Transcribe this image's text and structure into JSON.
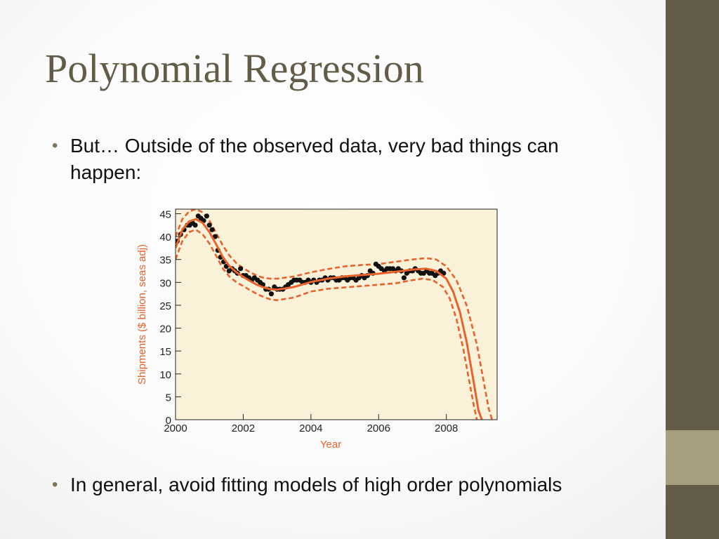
{
  "slide": {
    "title": "Polynomial Regression",
    "bullets": [
      "But… Outside of the observed data, very bad things can happen:",
      "In general, avoid fitting models of high order polynomials"
    ]
  },
  "colors": {
    "accent_bar": "#635c48",
    "accent_bar_light": "#a6a07e",
    "plot_background": "#f9f2d9",
    "fit_line": "#e8622c",
    "points": "#111111",
    "axis_text_orange": "#e8622c"
  },
  "chart_data": {
    "type": "scatter",
    "xlabel": "Year",
    "ylabel": "Shipments ($ billion, seas adj)",
    "xlim": [
      2000,
      2009.5
    ],
    "ylim": [
      0,
      46
    ],
    "xticks": [
      2000,
      2002,
      2004,
      2006,
      2008
    ],
    "yticks": [
      0,
      5,
      10,
      15,
      20,
      25,
      30,
      35,
      40,
      45
    ],
    "grid": false,
    "series": [
      {
        "kind": "points",
        "x": [
          2000.05,
          2000.15,
          2000.25,
          2000.35,
          2000.42,
          2000.5,
          2000.58,
          2000.67,
          2000.75,
          2000.83,
          2000.92,
          2001.0,
          2001.08,
          2001.17,
          2001.25,
          2001.33,
          2001.42,
          2001.5,
          2001.58,
          2001.67,
          2001.75,
          2001.83,
          2001.92,
          2002.0,
          2002.08,
          2002.17,
          2002.25,
          2002.33,
          2002.42,
          2002.5,
          2002.58,
          2002.67,
          2002.75,
          2002.83,
          2002.92,
          2003.0,
          2003.08,
          2003.17,
          2003.25,
          2003.33,
          2003.42,
          2003.5,
          2003.58,
          2003.67,
          2003.75,
          2003.83,
          2003.92,
          2004.0,
          2004.08,
          2004.17,
          2004.25,
          2004.33,
          2004.42,
          2004.5,
          2004.58,
          2004.67,
          2004.75,
          2004.83,
          2004.92,
          2005.0,
          2005.08,
          2005.17,
          2005.25,
          2005.33,
          2005.42,
          2005.5,
          2005.58,
          2005.67,
          2005.75,
          2005.83,
          2005.92,
          2006.0,
          2006.08,
          2006.17,
          2006.25,
          2006.33,
          2006.42,
          2006.5,
          2006.58,
          2006.67,
          2006.75,
          2006.83,
          2006.92,
          2007.0,
          2007.08,
          2007.17,
          2007.25,
          2007.33,
          2007.42,
          2007.5,
          2007.58,
          2007.67,
          2007.75,
          2007.83,
          2007.92
        ],
        "y": [
          39.0,
          40.5,
          41.5,
          42.5,
          42.5,
          43.0,
          42.5,
          44.5,
          44.0,
          43.5,
          44.5,
          42.5,
          41.5,
          40.0,
          37.0,
          35.5,
          34.5,
          33.5,
          32.5,
          33.0,
          32.5,
          32.0,
          33.0,
          31.5,
          31.5,
          31.0,
          30.5,
          31.0,
          30.5,
          30.0,
          29.5,
          28.5,
          28.5,
          27.5,
          29.0,
          28.5,
          28.5,
          28.5,
          29.0,
          29.5,
          30.0,
          30.5,
          30.5,
          30.5,
          30.0,
          30.0,
          30.5,
          30.0,
          30.5,
          30.0,
          30.5,
          30.5,
          31.0,
          30.5,
          31.0,
          31.0,
          30.5,
          30.5,
          31.0,
          31.0,
          30.5,
          31.0,
          31.0,
          30.5,
          31.0,
          31.5,
          31.0,
          31.5,
          32.5,
          32.0,
          34.0,
          33.5,
          33.0,
          32.5,
          33.0,
          33.0,
          33.0,
          32.5,
          33.0,
          32.5,
          31.0,
          32.0,
          32.5,
          32.5,
          33.0,
          32.5,
          32.0,
          32.0,
          32.5,
          32.0,
          32.0,
          31.5,
          32.0,
          32.5,
          32.0
        ]
      },
      {
        "kind": "fit",
        "x": [
          2000.0,
          2000.2,
          2000.4,
          2000.6,
          2000.8,
          2001.0,
          2001.2,
          2001.4,
          2001.6,
          2001.8,
          2002.0,
          2002.2,
          2002.4,
          2002.6,
          2002.8,
          2003.0,
          2003.5,
          2004.0,
          2004.5,
          2005.0,
          2005.5,
          2006.0,
          2006.5,
          2007.0,
          2007.4,
          2007.7,
          2008.0,
          2008.2,
          2008.4,
          2008.6,
          2008.8,
          2008.95,
          2009.05
        ],
        "y": [
          37.5,
          41.5,
          43.3,
          43.8,
          43.0,
          41.0,
          38.3,
          35.5,
          33.5,
          32.2,
          31.2,
          30.3,
          29.5,
          28.9,
          28.5,
          28.4,
          29.0,
          30.1,
          30.8,
          31.3,
          31.6,
          31.9,
          32.3,
          32.8,
          33.0,
          32.5,
          30.8,
          28.0,
          23.5,
          17.0,
          8.5,
          2.0,
          0.0
        ]
      },
      {
        "kind": "upper_band",
        "x": [
          2000.0,
          2000.2,
          2000.4,
          2000.6,
          2000.8,
          2001.0,
          2001.2,
          2001.4,
          2001.6,
          2001.8,
          2002.0,
          2002.2,
          2002.4,
          2002.6,
          2002.8,
          2003.0,
          2003.5,
          2004.0,
          2004.5,
          2005.0,
          2005.5,
          2006.0,
          2006.5,
          2007.0,
          2007.4,
          2007.7,
          2008.0,
          2008.3,
          2008.6,
          2008.9,
          2009.1,
          2009.25,
          2009.35
        ],
        "y": [
          40.0,
          43.8,
          45.5,
          46.0,
          45.3,
          43.5,
          40.8,
          38.0,
          35.8,
          34.2,
          33.1,
          32.2,
          31.5,
          31.0,
          30.8,
          30.8,
          31.3,
          32.2,
          32.9,
          33.5,
          33.8,
          34.0,
          34.5,
          35.0,
          35.3,
          35.0,
          33.5,
          30.5,
          25.0,
          16.5,
          8.5,
          2.5,
          0.0
        ]
      },
      {
        "kind": "lower_band",
        "x": [
          2000.0,
          2000.2,
          2000.4,
          2000.6,
          2000.8,
          2001.0,
          2001.2,
          2001.4,
          2001.6,
          2001.8,
          2002.0,
          2002.2,
          2002.4,
          2002.6,
          2002.8,
          2003.0,
          2003.5,
          2004.0,
          2004.5,
          2005.0,
          2005.5,
          2006.0,
          2006.5,
          2007.0,
          2007.3,
          2007.6,
          2007.9,
          2008.1,
          2008.3,
          2008.5,
          2008.65,
          2008.8,
          2008.9
        ],
        "y": [
          35.0,
          39.0,
          41.0,
          41.5,
          40.5,
          38.5,
          35.8,
          33.0,
          31.2,
          30.0,
          29.2,
          28.3,
          27.5,
          26.8,
          26.3,
          26.1,
          26.7,
          28.0,
          28.6,
          28.9,
          29.2,
          29.5,
          29.8,
          30.5,
          30.8,
          30.5,
          29.0,
          26.5,
          22.0,
          15.5,
          9.5,
          3.5,
          0.0
        ]
      }
    ]
  }
}
